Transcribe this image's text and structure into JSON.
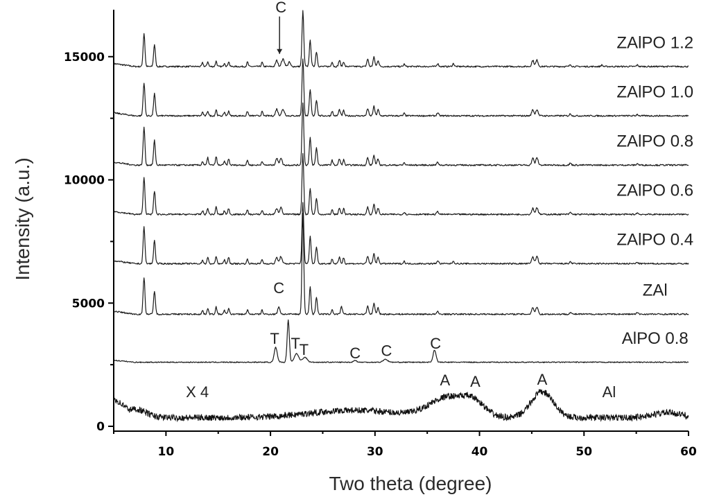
{
  "chart_data": {
    "type": "line",
    "xlabel": "Two theta (degree)",
    "ylabel": "Intensity (a.u.)",
    "xlim": [
      5,
      60
    ],
    "ylim": [
      -200,
      17300
    ],
    "x_ticks": [
      10,
      20,
      30,
      40,
      50,
      60
    ],
    "y_ticks": [
      0,
      5000,
      10000,
      15000
    ],
    "grid": false,
    "legend": "none",
    "series": [
      {
        "name": "ZAlPO 1.2",
        "baseline": 14600,
        "kind": "zeolite",
        "peaks": [
          [
            7.9,
            1350,
            0.12
          ],
          [
            8.9,
            900,
            0.12
          ],
          [
            13.5,
            150,
            0.1
          ],
          [
            14.0,
            200,
            0.1
          ],
          [
            14.8,
            220,
            0.1
          ],
          [
            15.6,
            150,
            0.1
          ],
          [
            16.0,
            200,
            0.1
          ],
          [
            17.8,
            180,
            0.1
          ],
          [
            19.2,
            170,
            0.1
          ],
          [
            20.6,
            250,
            0.15
          ],
          [
            21.2,
            300,
            0.2
          ],
          [
            21.8,
            180,
            0.15
          ],
          [
            23.1,
            2250,
            0.12
          ],
          [
            23.8,
            1050,
            0.12
          ],
          [
            24.4,
            600,
            0.12
          ],
          [
            25.9,
            200,
            0.1
          ],
          [
            26.6,
            250,
            0.12
          ],
          [
            27.0,
            200,
            0.1
          ],
          [
            29.3,
            300,
            0.12
          ],
          [
            29.9,
            380,
            0.12
          ],
          [
            30.3,
            250,
            0.12
          ],
          [
            32.8,
            100,
            0.1
          ],
          [
            36.0,
            120,
            0.12
          ],
          [
            37.5,
            120,
            0.12
          ],
          [
            45.1,
            250,
            0.15
          ],
          [
            45.5,
            260,
            0.15
          ],
          [
            48.7,
            80,
            0.12
          ],
          [
            51.7,
            60,
            0.12
          ],
          [
            55.1,
            60,
            0.12
          ]
        ]
      },
      {
        "name": "ZAlPO 1.0",
        "baseline": 12600,
        "kind": "zeolite",
        "peaks": [
          [
            7.9,
            1350,
            0.12
          ],
          [
            8.9,
            900,
            0.12
          ],
          [
            13.5,
            150,
            0.1
          ],
          [
            14.0,
            200,
            0.1
          ],
          [
            14.8,
            250,
            0.1
          ],
          [
            15.6,
            150,
            0.1
          ],
          [
            16.0,
            200,
            0.1
          ],
          [
            17.8,
            180,
            0.1
          ],
          [
            19.2,
            170,
            0.1
          ],
          [
            20.6,
            280,
            0.15
          ],
          [
            21.2,
            250,
            0.2
          ],
          [
            23.1,
            2300,
            0.12
          ],
          [
            23.8,
            1050,
            0.12
          ],
          [
            24.4,
            650,
            0.12
          ],
          [
            25.9,
            200,
            0.1
          ],
          [
            26.6,
            250,
            0.12
          ],
          [
            27.0,
            220,
            0.1
          ],
          [
            29.3,
            300,
            0.12
          ],
          [
            29.9,
            380,
            0.12
          ],
          [
            30.3,
            250,
            0.12
          ],
          [
            32.8,
            100,
            0.1
          ],
          [
            36.0,
            120,
            0.12
          ],
          [
            45.1,
            250,
            0.15
          ],
          [
            45.5,
            260,
            0.15
          ],
          [
            48.7,
            80,
            0.12
          ],
          [
            55.1,
            60,
            0.12
          ]
        ]
      },
      {
        "name": "ZAlPO 0.8",
        "baseline": 10600,
        "kind": "zeolite",
        "peaks": [
          [
            7.9,
            1550,
            0.12
          ],
          [
            8.9,
            1000,
            0.12
          ],
          [
            13.5,
            150,
            0.1
          ],
          [
            14.0,
            300,
            0.1
          ],
          [
            14.8,
            350,
            0.1
          ],
          [
            15.6,
            150,
            0.1
          ],
          [
            16.0,
            250,
            0.1
          ],
          [
            17.8,
            200,
            0.1
          ],
          [
            19.2,
            170,
            0.1
          ],
          [
            20.6,
            280,
            0.15
          ],
          [
            21.0,
            300,
            0.15
          ],
          [
            23.1,
            2550,
            0.12
          ],
          [
            23.8,
            1100,
            0.12
          ],
          [
            24.4,
            700,
            0.12
          ],
          [
            25.9,
            200,
            0.1
          ],
          [
            26.6,
            250,
            0.12
          ],
          [
            27.0,
            220,
            0.1
          ],
          [
            29.3,
            300,
            0.12
          ],
          [
            29.9,
            400,
            0.12
          ],
          [
            30.3,
            250,
            0.12
          ],
          [
            32.8,
            100,
            0.1
          ],
          [
            36.0,
            120,
            0.12
          ],
          [
            45.1,
            280,
            0.15
          ],
          [
            45.5,
            300,
            0.15
          ],
          [
            48.7,
            80,
            0.12
          ],
          [
            55.1,
            60,
            0.12
          ]
        ]
      },
      {
        "name": "ZAlPO 0.6",
        "baseline": 8600,
        "kind": "zeolite",
        "peaks": [
          [
            7.9,
            1500,
            0.12
          ],
          [
            8.9,
            950,
            0.12
          ],
          [
            13.5,
            150,
            0.1
          ],
          [
            14.0,
            250,
            0.1
          ],
          [
            14.8,
            300,
            0.1
          ],
          [
            15.6,
            150,
            0.1
          ],
          [
            16.0,
            250,
            0.1
          ],
          [
            17.8,
            180,
            0.1
          ],
          [
            19.2,
            170,
            0.1
          ],
          [
            20.6,
            250,
            0.15
          ],
          [
            21.0,
            300,
            0.15
          ],
          [
            23.1,
            2450,
            0.12
          ],
          [
            23.8,
            1050,
            0.12
          ],
          [
            24.4,
            650,
            0.12
          ],
          [
            25.9,
            200,
            0.1
          ],
          [
            26.6,
            250,
            0.12
          ],
          [
            27.0,
            250,
            0.1
          ],
          [
            29.3,
            300,
            0.12
          ],
          [
            29.9,
            400,
            0.12
          ],
          [
            30.3,
            250,
            0.12
          ],
          [
            32.8,
            100,
            0.1
          ],
          [
            36.0,
            120,
            0.12
          ],
          [
            45.1,
            250,
            0.15
          ],
          [
            45.5,
            280,
            0.15
          ],
          [
            48.7,
            80,
            0.12
          ],
          [
            55.1,
            60,
            0.12
          ]
        ]
      },
      {
        "name": "ZAlPO 0.4",
        "baseline": 6600,
        "kind": "zeolite",
        "peaks": [
          [
            7.9,
            1500,
            0.12
          ],
          [
            8.9,
            950,
            0.12
          ],
          [
            13.5,
            150,
            0.1
          ],
          [
            14.0,
            250,
            0.1
          ],
          [
            14.8,
            300,
            0.1
          ],
          [
            15.6,
            150,
            0.1
          ],
          [
            16.0,
            250,
            0.1
          ],
          [
            17.8,
            180,
            0.1
          ],
          [
            19.2,
            170,
            0.1
          ],
          [
            20.6,
            250,
            0.15
          ],
          [
            21.0,
            300,
            0.15
          ],
          [
            23.1,
            2500,
            0.12
          ],
          [
            23.8,
            1100,
            0.12
          ],
          [
            24.4,
            700,
            0.12
          ],
          [
            25.9,
            200,
            0.1
          ],
          [
            26.6,
            250,
            0.12
          ],
          [
            27.0,
            250,
            0.1
          ],
          [
            29.3,
            300,
            0.12
          ],
          [
            29.9,
            400,
            0.12
          ],
          [
            30.3,
            250,
            0.12
          ],
          [
            32.8,
            100,
            0.1
          ],
          [
            36.0,
            120,
            0.12
          ],
          [
            37.5,
            100,
            0.12
          ],
          [
            45.1,
            280,
            0.15
          ],
          [
            45.5,
            300,
            0.15
          ],
          [
            48.7,
            80,
            0.12
          ],
          [
            55.1,
            60,
            0.12
          ]
        ]
      },
      {
        "name": "ZAl",
        "baseline": 4550,
        "kind": "zeolite",
        "peaks": [
          [
            7.9,
            1500,
            0.12
          ],
          [
            8.9,
            950,
            0.12
          ],
          [
            13.5,
            150,
            0.1
          ],
          [
            14.0,
            250,
            0.1
          ],
          [
            14.8,
            300,
            0.1
          ],
          [
            15.6,
            150,
            0.1
          ],
          [
            16.0,
            250,
            0.1
          ],
          [
            17.8,
            180,
            0.1
          ],
          [
            19.2,
            170,
            0.1
          ],
          [
            20.8,
            300,
            0.15
          ],
          [
            23.1,
            4100,
            0.12
          ],
          [
            23.8,
            1100,
            0.12
          ],
          [
            24.4,
            700,
            0.12
          ],
          [
            25.9,
            200,
            0.1
          ],
          [
            26.8,
            300,
            0.12
          ],
          [
            29.3,
            350,
            0.12
          ],
          [
            29.9,
            450,
            0.12
          ],
          [
            30.3,
            250,
            0.12
          ],
          [
            36.0,
            100,
            0.12
          ],
          [
            45.1,
            280,
            0.15
          ],
          [
            45.5,
            300,
            0.15
          ],
          [
            48.7,
            80,
            0.12
          ],
          [
            55.1,
            60,
            0.12
          ]
        ]
      },
      {
        "name": "AlPO 0.8",
        "baseline": 2600,
        "kind": "alpo",
        "peaks": [
          [
            20.5,
            600,
            0.2
          ],
          [
            21.7,
            1700,
            0.15
          ],
          [
            22.5,
            350,
            0.3
          ],
          [
            23.3,
            200,
            0.3
          ],
          [
            28.1,
            80,
            0.2
          ],
          [
            31.0,
            120,
            0.3
          ],
          [
            35.7,
            500,
            0.2
          ]
        ]
      },
      {
        "name": "Al",
        "baseline": 350,
        "kind": "amorphous",
        "humps": [
          [
            7.0,
            350,
            1.5
          ],
          [
            28.0,
            300,
            6.0
          ],
          [
            37.0,
            800,
            2.5
          ],
          [
            39.5,
            500,
            1.5
          ],
          [
            46.0,
            1050,
            1.5
          ],
          [
            58.0,
            200,
            2.0
          ]
        ]
      }
    ],
    "annotations": [
      {
        "text": "C",
        "x": 21.0,
        "y": 16800,
        "arrow_to_y": 15000
      },
      {
        "text": "C",
        "x": 20.8,
        "y": 5400
      },
      {
        "text": "T",
        "x": 20.4,
        "y": 3350
      },
      {
        "text": "T",
        "x": 22.4,
        "y": 3150
      },
      {
        "text": "T",
        "x": 23.2,
        "y": 2900
      },
      {
        "text": "C",
        "x": 28.1,
        "y": 2750
      },
      {
        "text": "C",
        "x": 31.1,
        "y": 2850
      },
      {
        "text": "C",
        "x": 35.8,
        "y": 3150
      },
      {
        "text": "A",
        "x": 36.7,
        "y": 1660
      },
      {
        "text": "A",
        "x": 39.6,
        "y": 1600
      },
      {
        "text": "A",
        "x": 46.0,
        "y": 1690
      },
      {
        "text": "X 4",
        "x": 13.0,
        "y": 1180
      },
      {
        "text": "Al",
        "x": 52.4,
        "y": 1180
      }
    ]
  }
}
